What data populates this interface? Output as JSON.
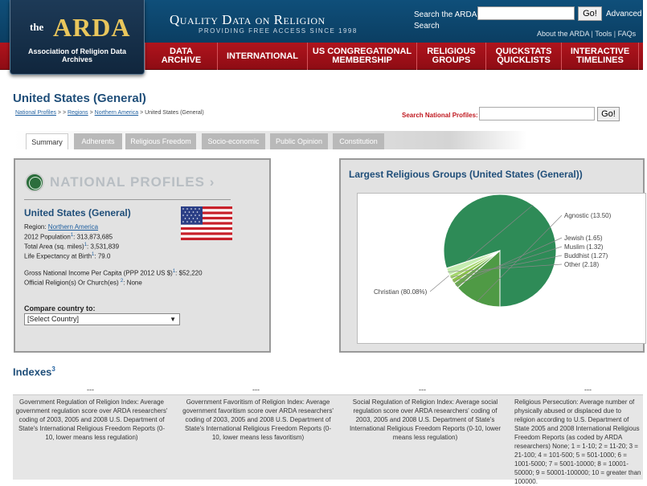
{
  "header": {
    "logo_the": "the",
    "logo_arda": "ARDA",
    "logo_sub": "Association of Religion Data Archives",
    "tagline": "Quality Data on Religion",
    "tagline_sub": "PROVIDING FREE ACCESS SINCE 1998",
    "search_label": "Search the ARDA Search",
    "search_go": "Go!",
    "advanced": "Advanced",
    "links": [
      "About the ARDA",
      "Tools",
      "FAQs"
    ]
  },
  "nav": [
    {
      "label": "DATA\nARCHIVE"
    },
    {
      "label": "INTERNATIONAL"
    },
    {
      "label": "US CONGREGATIONAL\nMEMBERSHIP"
    },
    {
      "label": "RELIGIOUS\nGROUPS"
    },
    {
      "label": "QUICKSTATS\nQUICKLISTS"
    },
    {
      "label": "INTERACTIVE\nTIMELINES"
    }
  ],
  "page": {
    "title": "United States (General)",
    "breadcrumb": {
      "national_profiles": "National Profiles",
      "sep1": " > > ",
      "regions": "Regions",
      "sep2": " > ",
      "region": "Northern America",
      "sep3": " > ",
      "current": "United States (General)"
    },
    "search_label": "Search National Profiles:",
    "search_go": "Go!"
  },
  "tabs": [
    "Summary",
    "Adherents",
    "Religious Freedom",
    "Socio-economic",
    "Public Opinion",
    "Constitution"
  ],
  "profile": {
    "heading": "NATIONAL PROFILES ›",
    "country": "United States (General)",
    "region_label": "Region: ",
    "region_value": "Northern America",
    "population_label": "2012 Population",
    "population_sup": "1",
    "population_value": ": 313,873,685",
    "area_label": "Total Area (sq. miles)",
    "area_sup": "1",
    "area_value": ": 3,531,839",
    "life_label": "Life Expectancy at Birth",
    "life_sup": "1",
    "life_value": ": 79.0",
    "gni_label": "Gross National Income Per Capita (PPP 2012 US $)",
    "gni_sup": "1",
    "gni_value": ": $52,220",
    "official_label": "Official Religion(s) Or Church(es) ",
    "official_sup": "2",
    "official_value": ": None",
    "compare_label": "Compare country to:",
    "compare_selected": "[Select Country]"
  },
  "chart_title": "Largest Religious Groups (United States (General))",
  "chart_data": {
    "type": "pie",
    "title": "Largest Religious Groups (United States (General))",
    "slices": [
      {
        "label": "Christian (80.08%)",
        "value": 80.08,
        "color": "#2e8b57"
      },
      {
        "label": "Agnostic (13.50)",
        "value": 13.5,
        "color": "#4f9a45"
      },
      {
        "label": "Jewish (1.65)",
        "value": 1.65,
        "color": "#6aa84f"
      },
      {
        "label": "Muslim (1.32)",
        "value": 1.32,
        "color": "#8bc34a"
      },
      {
        "label": "Buddhist (1.27)",
        "value": 1.27,
        "color": "#a5d66f"
      },
      {
        "label": "Other (2.18)",
        "value": 2.18,
        "color": "#c5ecb0"
      }
    ]
  },
  "indexes": {
    "title": "Indexes",
    "sup": "3",
    "dashes": [
      "---",
      "---",
      "---",
      "---"
    ],
    "cells": [
      "Government Regulation of Religion Index: Average government regulation score over ARDA researchers' coding of 2003, 2005 and 2008 U.S. Department of State's International Religious Freedom Reports (0-10, lower means less regulation)",
      "Government Favoritism of Religion Index: Average government favoritism score over ARDA researchers' coding of 2003, 2005 and 2008 U.S. Department of State's International Religious Freedom Reports (0-10, lower means less favoritism)",
      "Social Regulation of Religion Index: Average social regulation score over ARDA researchers' coding of 2003, 2005 and 2008 U.S. Department of State's International Religious Freedom Reports (0-10, lower means less regulation)",
      "Religious Persecution: Average number of physically abused or displaced due to religion according to U.S. Department of State 2005 and 2008 International Religious Freedom Reports (as coded by ARDA researchers) None; 1 = 1-10; 2 = 11-20; 3 = 21-100; 4 = 101-500; 5 = 501-1000; 6 = 1001-5000; 7 = 5001-10000; 8 = 10001-50000; 9 = 50001-100000; 10 = greater than 100000."
    ]
  }
}
